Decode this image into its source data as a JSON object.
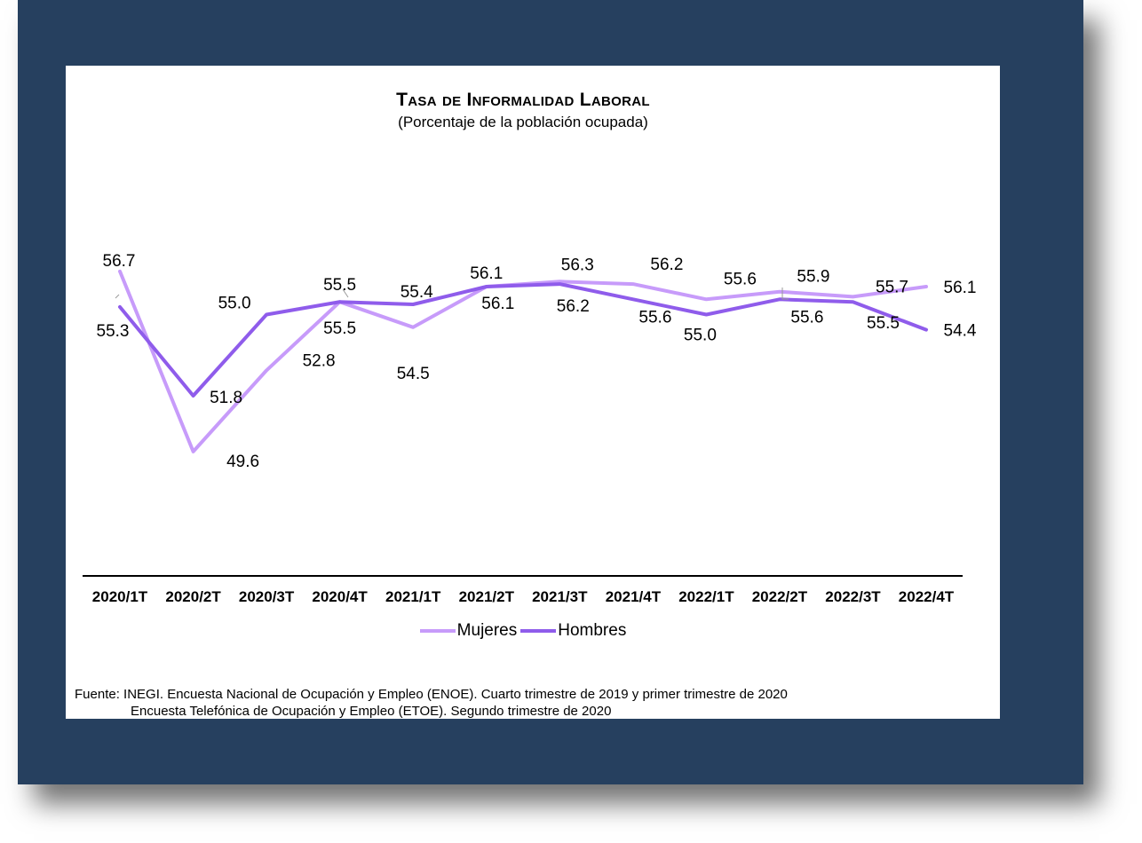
{
  "colors": {
    "background_frame": "#26405F",
    "panel": "#FFFFFF",
    "mujeres": "#C79BFA",
    "hombres": "#8F5CEB",
    "axis": "#000000"
  },
  "chart_data": {
    "type": "line",
    "title": "Tasa de Informalidad Laboral",
    "subtitle": "(Porcentaje de la población ocupada)",
    "categories": [
      "2020/1T",
      "2020/2T",
      "2020/3T",
      "2020/4T",
      "2021/1T",
      "2021/2T",
      "2021/3T",
      "2021/4T",
      "2022/1T",
      "2022/2T",
      "2022/3T",
      "2022/4T"
    ],
    "series": [
      {
        "name": "Mujeres",
        "color": "#C79BFA",
        "values": [
          56.7,
          49.6,
          52.8,
          55.5,
          54.5,
          56.1,
          56.3,
          56.2,
          55.6,
          55.9,
          55.7,
          56.1
        ]
      },
      {
        "name": "Hombres",
        "color": "#8F5CEB",
        "values": [
          55.3,
          51.8,
          55.0,
          55.5,
          55.4,
          56.1,
          56.2,
          55.6,
          55.0,
          55.6,
          55.5,
          54.4
        ]
      }
    ],
    "grid": false,
    "legend": "bottom"
  },
  "footer": {
    "source_line1": "Fuente: INEGI. Encuesta Nacional de Ocupación y Empleo (ENOE). Cuarto trimestre de 2019 y primer trimestre de 2020",
    "source_line2": "Encuesta Telefónica de Ocupación y Empleo (ETOE). Segundo trimestre de 2020"
  }
}
